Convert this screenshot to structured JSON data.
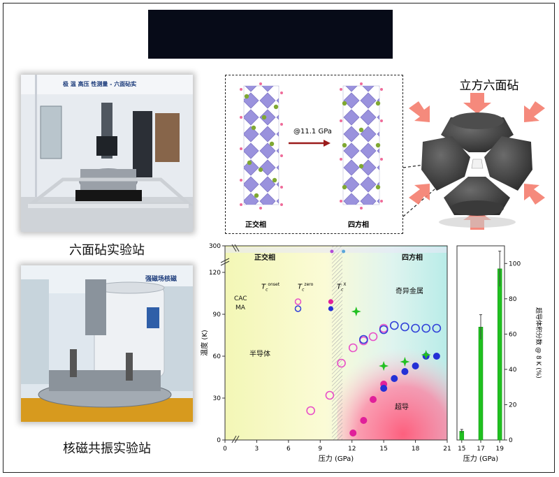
{
  "banner": {
    "blur_top": "",
    "blur_bottom": ""
  },
  "photos": {
    "cubic_station_caption": "六面砧实验站",
    "cubic_station_sign": "极 温 高压 性测量 - 六面砧实",
    "cubic_station_sign_sub": "",
    "nmr_station_caption": "核磁共振实验站",
    "nmr_station_sign": "强磁场核磁"
  },
  "crystal": {
    "left_label": "正交相",
    "right_label": "四方相",
    "arrow_label": "@11.1 GPa"
  },
  "anvil": {
    "title": "立方六面砧"
  },
  "phase_chart": {
    "region_labels": {
      "ortho": "正交相",
      "tetra": "四方相",
      "strange_metal": "奇异金属",
      "semiconductor": "半导体",
      "superconductor": "超导"
    },
    "legend": {
      "tc_onset": "T",
      "tc_onset_sup": "onset",
      "tc_zero": "T",
      "tc_zero_sup": "zero",
      "tc_x": "T",
      "tc_x_sup": "X",
      "sub_c": "c",
      "cac": "CAC",
      "ma": "MA"
    },
    "colors": {
      "cac": "#e84fc8",
      "ma": "#2f3fd8",
      "zero_cac": "#e0209a",
      "zero_ma": "#2430d6",
      "x": "#22c022"
    }
  },
  "bar_chart_labels": {}
}
